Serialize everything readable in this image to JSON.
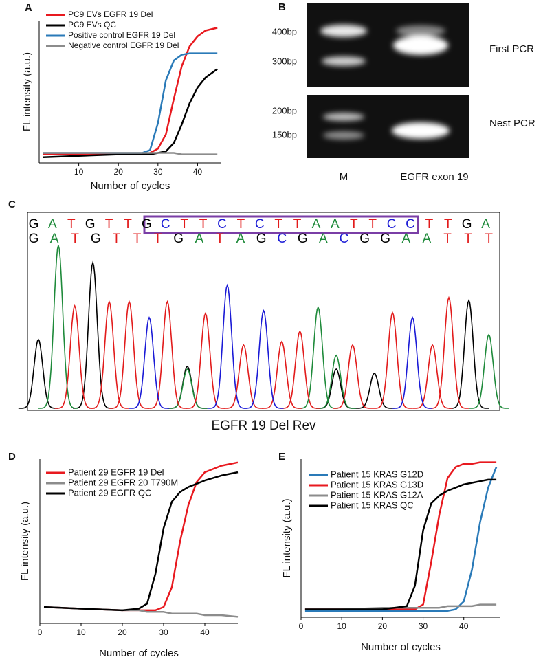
{
  "chart_data": [
    {
      "panel": "A",
      "type": "line",
      "xlabel": "Number of cycles",
      "ylabel": "FL intensity (a.u.)",
      "x": [
        1,
        10,
        20,
        26,
        28,
        30,
        32,
        34,
        36,
        38,
        40,
        42,
        45
      ],
      "xlim": [
        0,
        46
      ],
      "ylim": [
        0,
        100
      ],
      "xticks": [
        10,
        20,
        30,
        40
      ],
      "legend": "upper left",
      "series": [
        {
          "name": "PC9 EVs EGFR 19 Del",
          "color": "#e8191f",
          "values": [
            6,
            6,
            6,
            6,
            7,
            10,
            20,
            45,
            68,
            82,
            89,
            93,
            95
          ]
        },
        {
          "name": "PC9 EVs QC",
          "color": "#000000",
          "values": [
            4,
            5,
            6,
            6,
            6,
            7,
            8,
            14,
            27,
            42,
            53,
            60,
            66
          ]
        },
        {
          "name": "Positive control EGFR 19 Del",
          "color": "#2a7ab8",
          "values": [
            7,
            7,
            7,
            7,
            9,
            28,
            58,
            72,
            76,
            77,
            77,
            77,
            77
          ]
        },
        {
          "name": "Negative control EGFR 19 Del",
          "color": "#8c8c8c",
          "values": [
            7,
            7,
            7,
            7,
            7,
            7,
            7,
            7,
            6,
            6,
            6,
            6,
            6
          ]
        }
      ]
    },
    {
      "panel": "C",
      "type": "chromatogram",
      "xlabel": "EGFR 19 Del Rev",
      "sequences": [
        "GATGTTGCTTCTCTTAATTCCTTGA",
        "GATGTTTGATAGCGACGGAATTT"
      ],
      "base_colors": {
        "A": "#1e8a3a",
        "C": "#1a1ad6",
        "G": "#000000",
        "T": "#e21b1b"
      },
      "xlim": [
        0,
        26
      ],
      "ylim": [
        0,
        250
      ],
      "traces": [
        {
          "color": "#000000",
          "x": [
            0.6,
            3.6,
            8.8,
            17.0,
            19.1,
            24.3
          ],
          "values": [
            100,
            212,
            61,
            57,
            51,
            157
          ]
        },
        {
          "color": "#1e8a3a",
          "x": [
            1.7,
            8.8,
            16.0,
            17.0,
            25.4
          ],
          "values": [
            237,
            57,
            147,
            77,
            107
          ]
        },
        {
          "color": "#e21b1b",
          "x": [
            2.6,
            4.5,
            5.6,
            7.7,
            9.8,
            11.9,
            14.0,
            15.0,
            17.9,
            20.1,
            22.3,
            23.2
          ],
          "values": [
            149,
            155,
            155,
            155,
            138,
            92,
            97,
            112,
            92,
            139,
            92,
            161
          ]
        },
        {
          "color": "#1a1ad6",
          "x": [
            6.7,
            11.0,
            13.0,
            21.2
          ],
          "values": [
            132,
            179,
            142,
            132
          ]
        }
      ]
    },
    {
      "panel": "D",
      "type": "line",
      "xlabel": "Number of cycles",
      "ylabel": "FL intensity (a.u.)",
      "x": [
        1,
        10,
        20,
        24,
        26,
        28,
        30,
        32,
        34,
        36,
        38,
        40,
        44,
        48
      ],
      "xlim": [
        0,
        48
      ],
      "ylim": [
        0,
        100
      ],
      "xticks": [
        0,
        10,
        20,
        30,
        40
      ],
      "legend": "upper left",
      "series": [
        {
          "name": "Patient 29 EGFR 19 Del",
          "color": "#e8191f",
          "values": [
            10,
            9,
            8,
            8,
            8,
            8,
            10,
            22,
            50,
            72,
            86,
            92,
            96,
            98
          ]
        },
        {
          "name": "Patient 29 EGFR 20 T790M",
          "color": "#8c8c8c",
          "values": [
            10,
            9,
            8,
            8,
            7,
            7,
            7,
            6,
            6,
            6,
            6,
            5,
            5,
            4
          ]
        },
        {
          "name": "Patient 29 EGFR QC",
          "color": "#000000",
          "values": [
            10,
            9,
            8,
            9,
            12,
            30,
            58,
            74,
            80,
            83,
            85,
            87,
            90,
            92
          ]
        }
      ]
    },
    {
      "panel": "E",
      "type": "line",
      "xlabel": "Number of cycles",
      "ylabel": "FL intensity (a.u.)",
      "x": [
        1,
        10,
        20,
        26,
        28,
        30,
        32,
        34,
        36,
        38,
        40,
        42,
        44,
        46,
        48
      ],
      "xlim": [
        0,
        49
      ],
      "ylim": [
        0,
        100
      ],
      "xticks": [
        0,
        10,
        20,
        30,
        40
      ],
      "legend": "upper left",
      "series": [
        {
          "name": "Patient 15 KRAS G12D",
          "color": "#2a7ab8",
          "values": [
            4,
            4,
            4,
            4,
            4,
            4,
            4,
            4,
            4,
            5,
            10,
            30,
            60,
            82,
            95
          ]
        },
        {
          "name": "Patient 15 KRAS G13D",
          "color": "#e8191f",
          "values": [
            5,
            5,
            5,
            5,
            5,
            8,
            35,
            65,
            88,
            95,
            97,
            97,
            98,
            98,
            98
          ]
        },
        {
          "name": "Patient 15 KRAS G12A",
          "color": "#8c8c8c",
          "values": [
            5,
            5,
            6,
            6,
            6,
            6,
            6,
            6,
            7,
            7,
            7,
            7,
            8,
            8,
            8
          ]
        },
        {
          "name": "Patient 15 KRAS QC",
          "color": "#000000",
          "values": [
            5,
            5,
            5,
            7,
            20,
            55,
            72,
            77,
            80,
            82,
            84,
            85,
            86,
            87,
            87
          ]
        }
      ]
    }
  ],
  "gel": {
    "panel": "B",
    "markers": [
      "400bp",
      "300bp",
      "200bp",
      "150bp"
    ],
    "gels": [
      "First PCR",
      "Nest PCR"
    ],
    "lanes": [
      "M",
      "EGFR exon 19"
    ]
  }
}
